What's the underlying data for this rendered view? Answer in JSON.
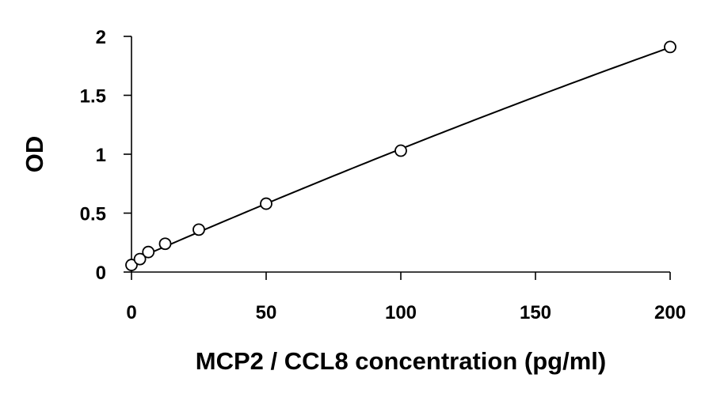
{
  "chart_data": {
    "type": "scatter",
    "title": "",
    "xlabel": "MCP2 / CCL8 concentration (pg/ml)",
    "ylabel": "OD",
    "xlim": [
      0,
      200
    ],
    "ylim": [
      0,
      2
    ],
    "x_ticks": [
      "0",
      "50",
      "100",
      "150",
      "200"
    ],
    "y_ticks": [
      "0",
      "0.5",
      "1",
      "1.5",
      "2"
    ],
    "grid": false,
    "legend": "none",
    "marker": "open-circle",
    "trendline": true,
    "series": [
      {
        "x": [
          0,
          3.125,
          6.25,
          12.5,
          25,
          50,
          100,
          200
        ],
        "y": [
          0.06,
          0.11,
          0.17,
          0.24,
          0.36,
          0.58,
          1.03,
          1.91
        ]
      }
    ],
    "colors": {
      "line": "#000000",
      "marker": "#000000",
      "background": "#ffffff"
    }
  }
}
